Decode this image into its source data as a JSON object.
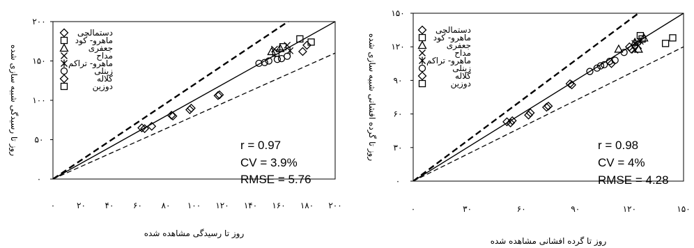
{
  "chart_data": [
    {
      "type": "scatter",
      "xlabel": "روز تا رسیدگی مشاهده شده",
      "ylabel": "روز تا رسیدگی شبیه سازی شده",
      "xlim": [
        0,
        200
      ],
      "ylim": [
        0,
        200
      ],
      "x_ticks": [
        "۰",
        "۲۰",
        "۴۰",
        "۶۰",
        "۸۰",
        "۱۰۰",
        "۱۲۰",
        "۱۴۰",
        "۱۶۰",
        "۱۸۰",
        "۲۰۰"
      ],
      "x_tick_values": [
        0,
        20,
        40,
        60,
        80,
        100,
        120,
        140,
        160,
        180,
        200
      ],
      "y_ticks": [
        "۰",
        "۵۰",
        "۱۰۰",
        "۱۵۰",
        "۲۰۰"
      ],
      "y_tick_values": [
        0,
        50,
        100,
        150,
        200
      ],
      "stats": [
        "r = 0.97",
        "CV = 3.9%",
        "RMSE = 5.76"
      ],
      "legend_position": "top-left",
      "reference_lines": [
        "1:1 line",
        "upper bound (dashed)",
        "lower bound (dashed)"
      ],
      "series": [
        {
          "name": "دستمالچی",
          "marker": "diamond",
          "x": [
            63,
            70,
            85,
            97,
            117,
            180
          ],
          "y": [
            65,
            67,
            80,
            88,
            106,
            170
          ]
        },
        {
          "name": "ماهرو- کود",
          "marker": "square",
          "x": [
            158,
            175,
            183
          ],
          "y": [
            160,
            178,
            174
          ]
        },
        {
          "name": "جعفری",
          "marker": "triangle",
          "x": [
            155,
            161
          ],
          "y": [
            162,
            166
          ]
        },
        {
          "name": "مداح",
          "marker": "x",
          "x": [
            157,
            166
          ],
          "y": [
            165,
            170
          ]
        },
        {
          "name": "ماهرو- تراکم",
          "marker": "asterisk",
          "x": [
            168
          ],
          "y": [
            163
          ]
        },
        {
          "name": "زینلی",
          "marker": "circle",
          "x": [
            146,
            150,
            153,
            159,
            162,
            166
          ],
          "y": [
            147,
            148,
            150,
            152,
            153,
            156
          ]
        },
        {
          "name": "کلاله",
          "marker": "diamond-open",
          "x": [
            65,
            84,
            98,
            118,
            177
          ],
          "y": [
            64,
            81,
            90,
            107,
            162
          ]
        },
        {
          "name": "دوزین",
          "marker": "square-open",
          "x": [
            163
          ],
          "y": [
            168
          ]
        }
      ]
    },
    {
      "type": "scatter",
      "xlabel": "روز تا گرده افشانی مشاهده شده",
      "ylabel": "روز تا گرده افشانی شبیه سازی شده",
      "xlim": [
        0,
        150
      ],
      "ylim": [
        0,
        150
      ],
      "x_ticks": [
        "۰",
        "۳۰",
        "۶۰",
        "۹۰",
        "۱۲۰",
        "۱۵۰"
      ],
      "x_tick_values": [
        0,
        30,
        60,
        90,
        120,
        150
      ],
      "y_ticks": [
        "۰",
        "۳۰",
        "۶۰",
        "۹۰",
        "۱۲۰",
        "۱۵۰"
      ],
      "y_tick_values": [
        0,
        30,
        60,
        90,
        120,
        150
      ],
      "stats": [
        "r = 0.98",
        "CV = 4%",
        "RMSE = 4.28"
      ],
      "legend_position": "top-left",
      "reference_lines": [
        "1:1 line",
        "upper bound (dashed)",
        "lower bound (dashed)"
      ],
      "series": [
        {
          "name": "دستمالچی",
          "marker": "diamond",
          "x": [
            52,
            55,
            65,
            75,
            87,
            120
          ],
          "y": [
            53,
            54,
            61,
            67,
            87,
            120
          ]
        },
        {
          "name": "ماهرو- کود",
          "marker": "square",
          "x": [
            127,
            140,
            144
          ],
          "y": [
            127,
            123,
            128
          ]
        },
        {
          "name": "جعفری",
          "marker": "triangle",
          "x": [
            114,
            123,
            125,
            128
          ],
          "y": [
            118,
            124,
            118,
            128
          ]
        },
        {
          "name": "مداح",
          "marker": "x",
          "x": [
            123,
            125
          ],
          "y": [
            117,
            121
          ]
        },
        {
          "name": "ماهرو- تراکم",
          "marker": "asterisk",
          "x": [
            123,
            126
          ],
          "y": [
            123,
            125
          ]
        },
        {
          "name": "زینلی",
          "marker": "circle",
          "x": [
            98,
            102,
            104,
            106,
            109,
            112,
            117
          ],
          "y": [
            98,
            101,
            103,
            104,
            107,
            108,
            115
          ]
        },
        {
          "name": "کلاله",
          "marker": "diamond-open",
          "x": [
            54,
            64,
            74,
            88,
            110,
            121
          ],
          "y": [
            52,
            59,
            66,
            86,
            105,
            118
          ]
        },
        {
          "name": "دوزین",
          "marker": "square-open",
          "x": [
            126
          ],
          "y": [
            130
          ]
        }
      ]
    }
  ]
}
